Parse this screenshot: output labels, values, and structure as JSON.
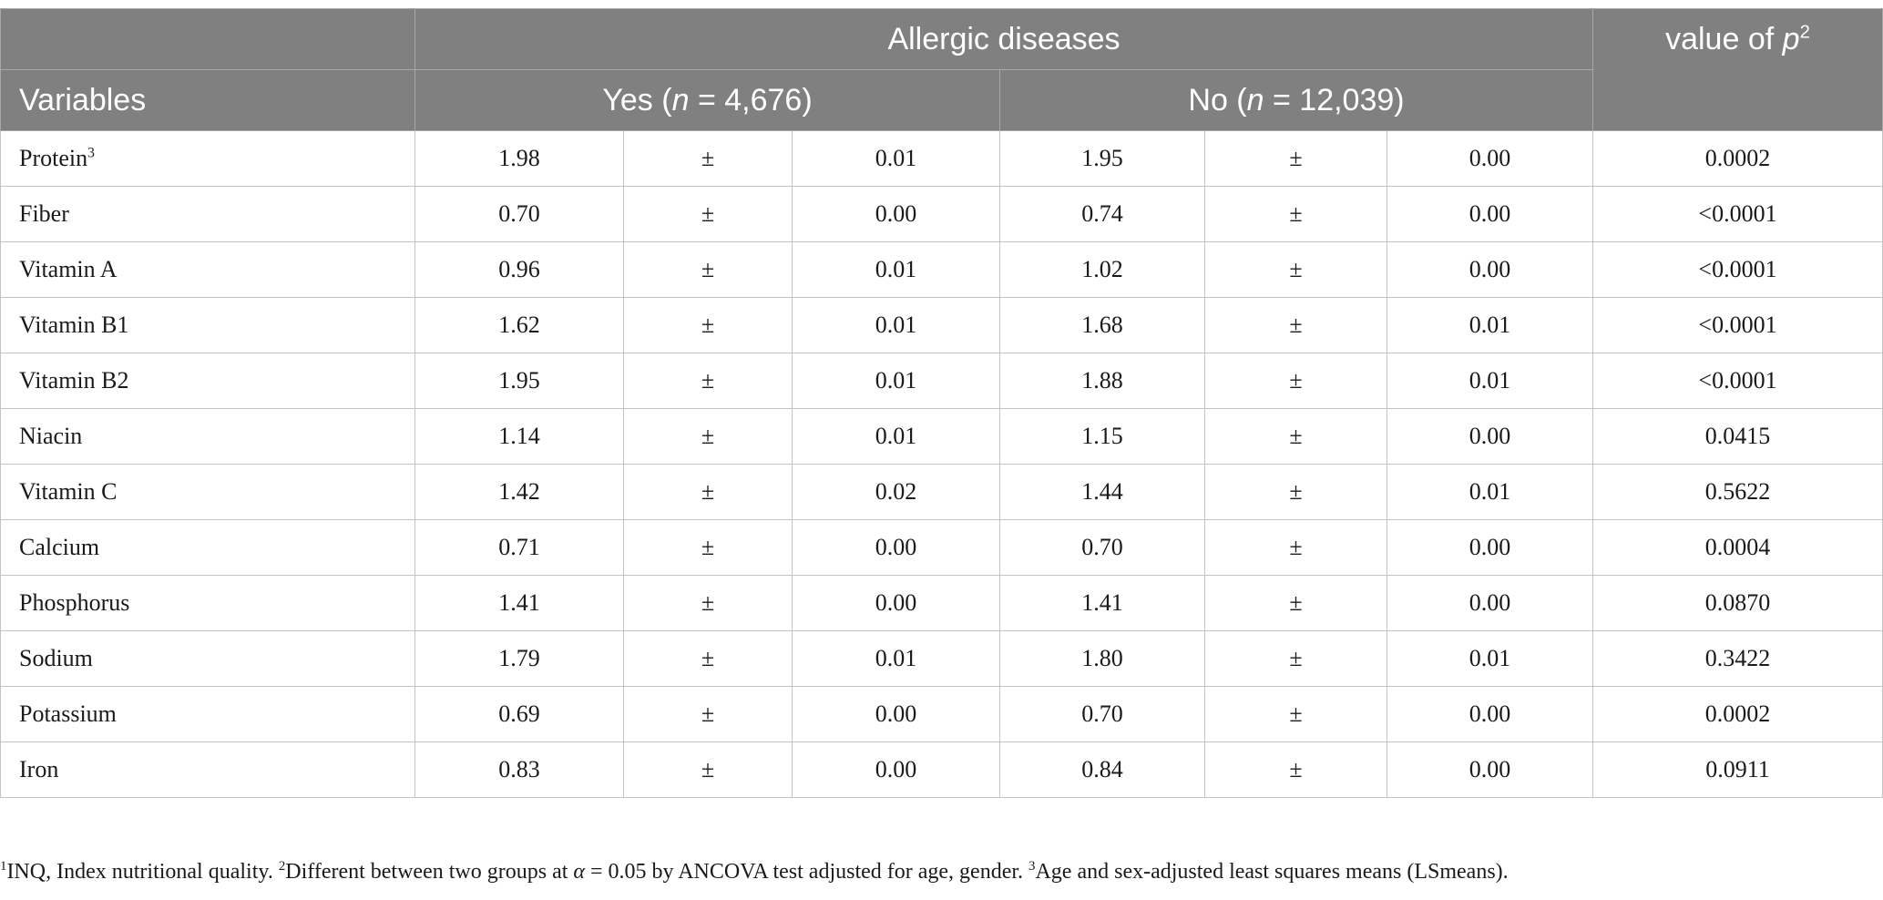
{
  "header": {
    "group_title": "Allergic diseases",
    "variables_label": "Variables",
    "pvalue_label": "value of",
    "pvalue_symbol": "p",
    "pvalue_sup": "2",
    "yes_label": "Yes (",
    "yes_n_symbol": "n",
    "yes_n_value": " = 4,676)",
    "no_label": "No (",
    "no_n_symbol": "n",
    "no_n_value": " = 12,039)"
  },
  "rows": [
    {
      "variable": "Protein",
      "sup": "3",
      "yes_mean": "1.98",
      "yes_pm": "±",
      "yes_se": "0.01",
      "no_mean": "1.95",
      "no_pm": "±",
      "no_se": "0.00",
      "p": "0.0002"
    },
    {
      "variable": "Fiber",
      "sup": "",
      "yes_mean": "0.70",
      "yes_pm": "±",
      "yes_se": "0.00",
      "no_mean": "0.74",
      "no_pm": "±",
      "no_se": "0.00",
      "p": "<0.0001"
    },
    {
      "variable": "Vitamin A",
      "sup": "",
      "yes_mean": "0.96",
      "yes_pm": "±",
      "yes_se": "0.01",
      "no_mean": "1.02",
      "no_pm": "±",
      "no_se": "0.00",
      "p": "<0.0001"
    },
    {
      "variable": "Vitamin B1",
      "sup": "",
      "yes_mean": "1.62",
      "yes_pm": "±",
      "yes_se": "0.01",
      "no_mean": "1.68",
      "no_pm": "±",
      "no_se": "0.01",
      "p": "<0.0001"
    },
    {
      "variable": "Vitamin B2",
      "sup": "",
      "yes_mean": "1.95",
      "yes_pm": "±",
      "yes_se": "0.01",
      "no_mean": "1.88",
      "no_pm": "±",
      "no_se": "0.01",
      "p": "<0.0001"
    },
    {
      "variable": "Niacin",
      "sup": "",
      "yes_mean": "1.14",
      "yes_pm": "±",
      "yes_se": "0.01",
      "no_mean": "1.15",
      "no_pm": "±",
      "no_se": "0.00",
      "p": "0.0415"
    },
    {
      "variable": "Vitamin C",
      "sup": "",
      "yes_mean": "1.42",
      "yes_pm": "±",
      "yes_se": "0.02",
      "no_mean": "1.44",
      "no_pm": "±",
      "no_se": "0.01",
      "p": "0.5622"
    },
    {
      "variable": "Calcium",
      "sup": "",
      "yes_mean": "0.71",
      "yes_pm": "±",
      "yes_se": "0.00",
      "no_mean": "0.70",
      "no_pm": "±",
      "no_se": "0.00",
      "p": "0.0004"
    },
    {
      "variable": "Phosphorus",
      "sup": "",
      "yes_mean": "1.41",
      "yes_pm": "±",
      "yes_se": "0.00",
      "no_mean": "1.41",
      "no_pm": "±",
      "no_se": "0.00",
      "p": "0.0870"
    },
    {
      "variable": "Sodium",
      "sup": "",
      "yes_mean": "1.79",
      "yes_pm": "±",
      "yes_se": "0.01",
      "no_mean": "1.80",
      "no_pm": "±",
      "no_se": "0.01",
      "p": "0.3422"
    },
    {
      "variable": "Potassium",
      "sup": "",
      "yes_mean": "0.69",
      "yes_pm": "±",
      "yes_se": "0.00",
      "no_mean": "0.70",
      "no_pm": "±",
      "no_se": "0.00",
      "p": "0.0002"
    },
    {
      "variable": "Iron",
      "sup": "",
      "yes_mean": "0.83",
      "yes_pm": "±",
      "yes_se": "0.00",
      "no_mean": "0.84",
      "no_pm": "±",
      "no_se": "0.00",
      "p": "0.0911"
    }
  ],
  "footnote": {
    "s1": "1",
    "t1": "INQ, Index nutritional quality. ",
    "s2": "2",
    "t2a": "Different between two groups at ",
    "alpha": "α",
    "t2b": " = 0.05 by ANCOVA test adjusted for age, gender. ",
    "s3": "3",
    "t3": "Age and sex-adjusted least squares means (LSmeans)."
  },
  "colors": {
    "header_bg": "#808080",
    "header_text": "#ffffff",
    "border": "#c4c4c4"
  }
}
